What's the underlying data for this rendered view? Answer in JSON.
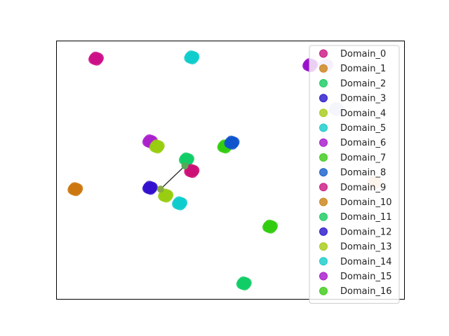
{
  "chart_data": {
    "type": "scatter",
    "title": "",
    "xlabel": "",
    "ylabel": "",
    "xlim": [
      0,
      100
    ],
    "ylim": [
      0,
      100
    ],
    "axis_ticks_visible": false,
    "grid": false,
    "legend_placement": "right, top-aligned",
    "series": [
      {
        "name": "Domain_0",
        "color": "#cc2288"
      },
      {
        "name": "Domain_1",
        "color": "#cc8822"
      },
      {
        "name": "Domain_2",
        "color": "#22cc66"
      },
      {
        "name": "Domain_3",
        "color": "#3322cc"
      },
      {
        "name": "Domain_4",
        "color": "#aacc22"
      },
      {
        "name": "Domain_5",
        "color": "#22cccc"
      },
      {
        "name": "Domain_6",
        "color": "#aa22cc"
      },
      {
        "name": "Domain_7",
        "color": "#44cc22"
      },
      {
        "name": "Domain_8",
        "color": "#2266cc"
      },
      {
        "name": "Domain_9",
        "color": "#cc2288"
      },
      {
        "name": "Domain_10",
        "color": "#cc8822"
      },
      {
        "name": "Domain_11",
        "color": "#22cc66"
      },
      {
        "name": "Domain_12",
        "color": "#3322cc"
      },
      {
        "name": "Domain_13",
        "color": "#aacc22"
      },
      {
        "name": "Domain_14",
        "color": "#22cccc"
      },
      {
        "name": "Domain_15",
        "color": "#aa22cc"
      },
      {
        "name": "Domain_16",
        "color": "#44cc22"
      }
    ],
    "clusters": [
      {
        "x": 11.5,
        "y": 93.0,
        "color": "#cc1188"
      },
      {
        "x": 39.0,
        "y": 93.5,
        "color": "#11cccc"
      },
      {
        "x": 73.0,
        "y": 90.5,
        "color": "#9911cc"
      },
      {
        "x": 77.5,
        "y": 90.5,
        "color": "#ccbbee"
      },
      {
        "x": 80.5,
        "y": 73.5,
        "color": "#ccccee"
      },
      {
        "x": 27.0,
        "y": 61.0,
        "color": "#aa22cc"
      },
      {
        "x": 29.0,
        "y": 59.0,
        "color": "#99cc11"
      },
      {
        "x": 48.5,
        "y": 59.0,
        "color": "#33cc11"
      },
      {
        "x": 50.5,
        "y": 60.5,
        "color": "#1155cc"
      },
      {
        "x": 37.5,
        "y": 54.0,
        "color": "#11cc66"
      },
      {
        "x": 39.0,
        "y": 49.5,
        "color": "#cc1177"
      },
      {
        "x": 5.5,
        "y": 42.5,
        "color": "#cc7711"
      },
      {
        "x": 27.0,
        "y": 43.0,
        "color": "#3311cc"
      },
      {
        "x": 31.5,
        "y": 40.0,
        "color": "#99cc11"
      },
      {
        "x": 35.5,
        "y": 37.0,
        "color": "#11cccc"
      },
      {
        "x": 61.5,
        "y": 28.0,
        "color": "#33cc11"
      },
      {
        "x": 54.0,
        "y": 6.0,
        "color": "#11cc66"
      },
      {
        "x": 91.5,
        "y": 45.0,
        "color": "#eeccaa"
      }
    ],
    "connector": {
      "from": [
        30.0,
        42.5
      ],
      "to": [
        37.0,
        51.5
      ],
      "color": "#222222"
    }
  }
}
